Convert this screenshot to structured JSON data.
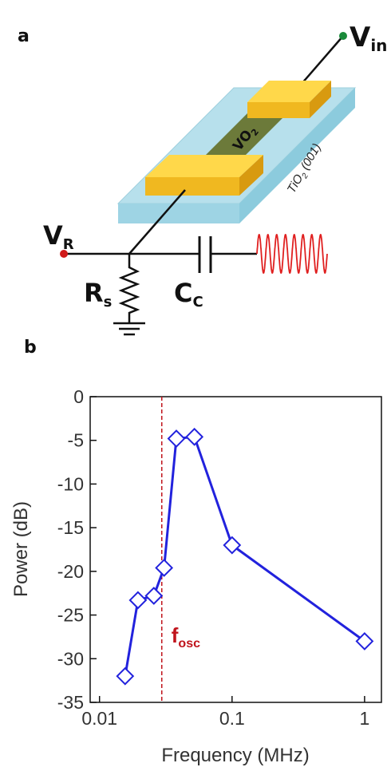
{
  "diagram": {
    "panel": "a",
    "vin": {
      "text": "V",
      "sub": "in"
    },
    "vo2": {
      "text": "VO",
      "sub": "2"
    },
    "substrate": {
      "text": "TiO",
      "sub": "2",
      "rest": " (001)"
    },
    "vr": {
      "text": "V",
      "sub": "R"
    },
    "rs": {
      "text": "R",
      "sub": "s"
    },
    "cc": {
      "text": "C",
      "sub": "C"
    }
  },
  "chart_data": {
    "type": "line",
    "panel": "b",
    "xlabel": "Frequency (MHz)",
    "ylabel": "Power (dB)",
    "x": [
      0.0156,
      0.0195,
      0.0257,
      0.0307,
      0.038,
      0.052,
      0.1,
      1
    ],
    "series": [
      {
        "color": "#2222dd",
        "values": [
          -32,
          -23.3,
          -22.8,
          -19.6,
          -4.8,
          -4.6,
          -17,
          -28
        ]
      }
    ],
    "xlog": true,
    "xlim": [
      0.0085,
      1.34
    ],
    "xticks": [
      0.01,
      0.1,
      1
    ],
    "ylim": [
      -35,
      0
    ],
    "yticks": [
      0,
      -5,
      -10,
      -15,
      -20,
      -25,
      -30,
      -35
    ],
    "annotation": {
      "text": "f",
      "sub": "osc",
      "x": 0.0295,
      "color": "#c0141c"
    }
  }
}
